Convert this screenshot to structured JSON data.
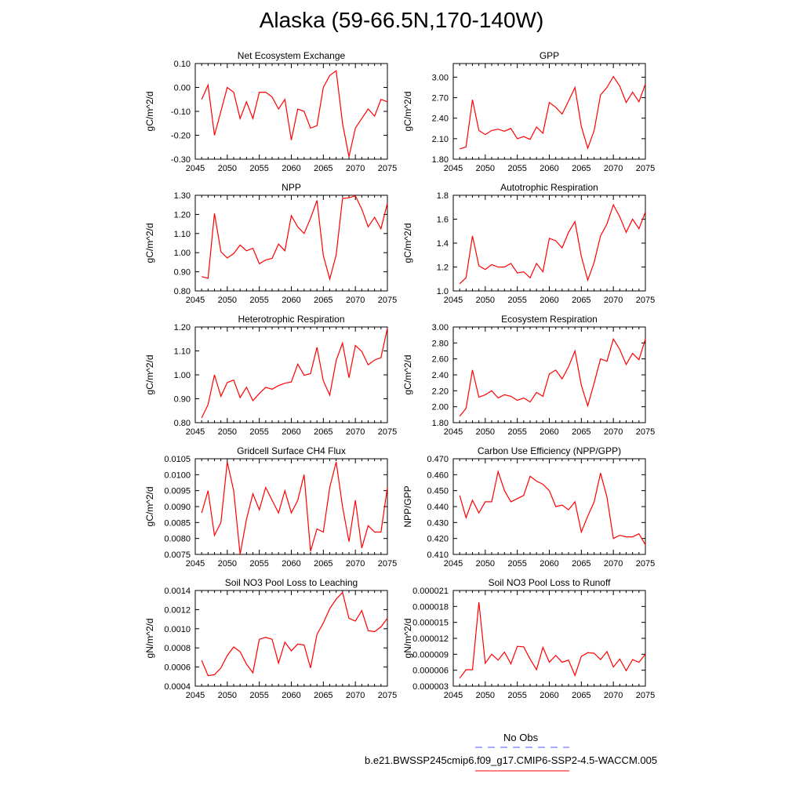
{
  "figure": {
    "title": "Alaska (59-66.5N,170-140W)"
  },
  "colors": {
    "model_line": "#ff0000",
    "obs_line": "#5a5aff",
    "axis": "#000000"
  },
  "legend": {
    "obs_label": "No Obs",
    "model_label": "b.e21.BWSSP245cmip6.f09_g17.CMIP6-SSP2-4.5-WACCM.005"
  },
  "chart_data": [
    {
      "type": "line",
      "title": "Net Ecosystem Exchange",
      "ylabel": "gC/m^2/d",
      "xlim": [
        2045,
        2075
      ],
      "ylim": [
        -0.3,
        0.1
      ],
      "yticks": [
        "-0.30",
        "-0.20",
        "-0.10",
        "0.00",
        "0.10"
      ],
      "xticks": [
        "2045",
        "2050",
        "2055",
        "2060",
        "2065",
        "2070",
        "2075"
      ],
      "x": [
        2046,
        2047,
        2048,
        2049,
        2050,
        2051,
        2052,
        2053,
        2054,
        2055,
        2056,
        2057,
        2058,
        2059,
        2060,
        2061,
        2062,
        2063,
        2064,
        2065,
        2066,
        2067,
        2068,
        2069,
        2070,
        2071,
        2072,
        2073,
        2074,
        2075
      ],
      "values": [
        -0.05,
        0.01,
        -0.2,
        -0.1,
        0.0,
        -0.02,
        -0.13,
        -0.06,
        -0.13,
        -0.02,
        -0.02,
        -0.04,
        -0.09,
        -0.05,
        -0.22,
        -0.09,
        -0.1,
        -0.17,
        -0.16,
        0.0,
        0.05,
        0.07,
        -0.15,
        -0.29,
        -0.17,
        -0.13,
        -0.09,
        -0.12,
        -0.05,
        -0.06
      ]
    },
    {
      "type": "line",
      "title": "GPP",
      "ylabel": "gC/m^2/d",
      "xlim": [
        2045,
        2075
      ],
      "ylim": [
        1.8,
        3.2
      ],
      "yticks": [
        "1.80",
        "2.10",
        "2.40",
        "2.70",
        "3.00"
      ],
      "xticks": [
        "2045",
        "2050",
        "2055",
        "2060",
        "2065",
        "2070",
        "2075"
      ],
      "x": [
        2046,
        2047,
        2048,
        2049,
        2050,
        2051,
        2052,
        2053,
        2054,
        2055,
        2056,
        2057,
        2058,
        2059,
        2060,
        2061,
        2062,
        2063,
        2064,
        2065,
        2066,
        2067,
        2068,
        2069,
        2070,
        2071,
        2072,
        2073,
        2074,
        2075
      ],
      "values": [
        1.95,
        1.98,
        2.67,
        2.22,
        2.16,
        2.22,
        2.24,
        2.21,
        2.25,
        2.1,
        2.13,
        2.09,
        2.27,
        2.18,
        2.63,
        2.56,
        2.46,
        2.65,
        2.85,
        2.28,
        1.96,
        2.22,
        2.74,
        2.85,
        3.01,
        2.87,
        2.63,
        2.78,
        2.64,
        2.9
      ]
    },
    {
      "type": "line",
      "title": "NPP",
      "ylabel": "gC/m^2/d",
      "xlim": [
        2045,
        2075
      ],
      "ylim": [
        0.8,
        1.3
      ],
      "yticks": [
        "0.80",
        "0.90",
        "1.00",
        "1.10",
        "1.20",
        "1.30"
      ],
      "xticks": [
        "2045",
        "2050",
        "2055",
        "2060",
        "2065",
        "2070",
        "2075"
      ],
      "x": [
        2046,
        2047,
        2048,
        2049,
        2050,
        2051,
        2052,
        2053,
        2054,
        2055,
        2056,
        2057,
        2058,
        2059,
        2060,
        2061,
        2062,
        2063,
        2064,
        2065,
        2066,
        2067,
        2068,
        2069,
        2070,
        2071,
        2072,
        2073,
        2074,
        2075
      ],
      "values": [
        0.875,
        0.866,
        1.205,
        1.005,
        0.972,
        0.995,
        1.04,
        1.01,
        1.023,
        0.942,
        0.962,
        0.97,
        1.045,
        1.01,
        1.193,
        1.135,
        1.1,
        1.18,
        1.273,
        0.985,
        0.862,
        0.988,
        1.283,
        1.287,
        1.297,
        1.228,
        1.135,
        1.185,
        1.125,
        1.258
      ]
    },
    {
      "type": "line",
      "title": "Autotrophic Respiration",
      "ylabel": "gC/m^2/d",
      "xlim": [
        2045,
        2075
      ],
      "ylim": [
        1.0,
        1.8
      ],
      "yticks": [
        "1.0",
        "1.2",
        "1.4",
        "1.6",
        "1.8"
      ],
      "xticks": [
        "2045",
        "2050",
        "2055",
        "2060",
        "2065",
        "2070",
        "2075"
      ],
      "x": [
        2046,
        2047,
        2048,
        2049,
        2050,
        2051,
        2052,
        2053,
        2054,
        2055,
        2056,
        2057,
        2058,
        2059,
        2060,
        2061,
        2062,
        2063,
        2064,
        2065,
        2066,
        2067,
        2068,
        2069,
        2070,
        2071,
        2072,
        2073,
        2074,
        2075
      ],
      "values": [
        1.06,
        1.11,
        1.46,
        1.21,
        1.18,
        1.22,
        1.2,
        1.2,
        1.23,
        1.15,
        1.16,
        1.11,
        1.23,
        1.16,
        1.44,
        1.42,
        1.36,
        1.49,
        1.58,
        1.29,
        1.09,
        1.24,
        1.46,
        1.56,
        1.72,
        1.62,
        1.49,
        1.6,
        1.52,
        1.66
      ]
    },
    {
      "type": "line",
      "title": "Heterotrophic Respiration",
      "ylabel": "gC/m^2/d",
      "xlim": [
        2045,
        2075
      ],
      "ylim": [
        0.8,
        1.2
      ],
      "yticks": [
        "0.80",
        "0.90",
        "1.00",
        "1.10",
        "1.20"
      ],
      "xticks": [
        "2045",
        "2050",
        "2055",
        "2060",
        "2065",
        "2070",
        "2075"
      ],
      "x": [
        2046,
        2047,
        2048,
        2049,
        2050,
        2051,
        2052,
        2053,
        2054,
        2055,
        2056,
        2057,
        2058,
        2059,
        2060,
        2061,
        2062,
        2063,
        2064,
        2065,
        2066,
        2067,
        2068,
        2069,
        2070,
        2071,
        2072,
        2073,
        2074,
        2075
      ],
      "values": [
        0.82,
        0.875,
        1.0,
        0.91,
        0.968,
        0.978,
        0.905,
        0.948,
        0.892,
        0.922,
        0.948,
        0.94,
        0.955,
        0.965,
        0.97,
        1.045,
        0.998,
        1.005,
        1.115,
        0.975,
        0.915,
        1.06,
        1.133,
        0.988,
        1.123,
        1.098,
        1.042,
        1.062,
        1.072,
        1.195
      ]
    },
    {
      "type": "line",
      "title": "Ecosystem Respiration",
      "ylabel": "gC/m^2/d",
      "xlim": [
        2045,
        2075
      ],
      "ylim": [
        1.8,
        3.0
      ],
      "yticks": [
        "1.80",
        "2.00",
        "2.20",
        "2.40",
        "2.60",
        "2.80",
        "3.00"
      ],
      "xticks": [
        "2045",
        "2050",
        "2055",
        "2060",
        "2065",
        "2070",
        "2075"
      ],
      "x": [
        2046,
        2047,
        2048,
        2049,
        2050,
        2051,
        2052,
        2053,
        2054,
        2055,
        2056,
        2057,
        2058,
        2059,
        2060,
        2061,
        2062,
        2063,
        2064,
        2065,
        2066,
        2067,
        2068,
        2069,
        2070,
        2071,
        2072,
        2073,
        2074,
        2075
      ],
      "values": [
        1.88,
        1.98,
        2.46,
        2.12,
        2.15,
        2.2,
        2.11,
        2.15,
        2.13,
        2.08,
        2.11,
        2.06,
        2.18,
        2.13,
        2.41,
        2.46,
        2.35,
        2.5,
        2.7,
        2.27,
        2.01,
        2.3,
        2.6,
        2.57,
        2.85,
        2.72,
        2.53,
        2.67,
        2.59,
        2.85
      ]
    },
    {
      "type": "line",
      "title": "Gridcell Surface CH4 Flux",
      "ylabel": "gC/m^2/d",
      "xlim": [
        2045,
        2075
      ],
      "ylim": [
        0.0075,
        0.0105
      ],
      "yticks": [
        "0.0075",
        "0.0080",
        "0.0085",
        "0.0090",
        "0.0095",
        "0.0100",
        "0.0105"
      ],
      "xticks": [
        "2045",
        "2050",
        "2055",
        "2060",
        "2065",
        "2070",
        "2075"
      ],
      "x": [
        2046,
        2047,
        2048,
        2049,
        2050,
        2051,
        2052,
        2053,
        2054,
        2055,
        2056,
        2057,
        2058,
        2059,
        2060,
        2061,
        2062,
        2063,
        2064,
        2065,
        2066,
        2067,
        2068,
        2069,
        2070,
        2071,
        2072,
        2073,
        2074,
        2075
      ],
      "values": [
        0.0088,
        0.0095,
        0.0081,
        0.0085,
        0.0104,
        0.0095,
        0.0075,
        0.0086,
        0.0094,
        0.0089,
        0.0096,
        0.0092,
        0.0088,
        0.0095,
        0.0088,
        0.0092,
        0.01,
        0.0076,
        0.0083,
        0.0082,
        0.0096,
        0.0104,
        0.009,
        0.0079,
        0.0092,
        0.0077,
        0.0084,
        0.0082,
        0.0082,
        0.0096
      ]
    },
    {
      "type": "line",
      "title": "Carbon Use Efficiency (NPP/GPP)",
      "ylabel": "NPP/GPP",
      "xlim": [
        2045,
        2075
      ],
      "ylim": [
        0.41,
        0.47
      ],
      "yticks": [
        "0.410",
        "0.420",
        "0.430",
        "0.440",
        "0.450",
        "0.460",
        "0.470"
      ],
      "xticks": [
        "2045",
        "2050",
        "2055",
        "2060",
        "2065",
        "2070",
        "2075"
      ],
      "x": [
        2046,
        2047,
        2048,
        2049,
        2050,
        2051,
        2052,
        2053,
        2054,
        2055,
        2056,
        2057,
        2058,
        2059,
        2060,
        2061,
        2062,
        2063,
        2064,
        2065,
        2066,
        2067,
        2068,
        2069,
        2070,
        2071,
        2072,
        2073,
        2074,
        2075
      ],
      "values": [
        0.447,
        0.433,
        0.444,
        0.436,
        0.443,
        0.443,
        0.462,
        0.45,
        0.443,
        0.445,
        0.447,
        0.459,
        0.456,
        0.454,
        0.45,
        0.44,
        0.441,
        0.438,
        0.443,
        0.424,
        0.434,
        0.443,
        0.461,
        0.446,
        0.42,
        0.422,
        0.421,
        0.421,
        0.423,
        0.416
      ]
    },
    {
      "type": "line",
      "title": "Soil NO3 Pool Loss to Leaching",
      "ylabel": "gN/m^2/d",
      "xlim": [
        2045,
        2075
      ],
      "ylim": [
        0.0004,
        0.0014
      ],
      "yticks": [
        "0.0004",
        "0.0006",
        "0.0008",
        "0.0010",
        "0.0012",
        "0.0014"
      ],
      "xticks": [
        "2045",
        "2050",
        "2055",
        "2060",
        "2065",
        "2070",
        "2075"
      ],
      "x": [
        2046,
        2047,
        2048,
        2049,
        2050,
        2051,
        2052,
        2053,
        2054,
        2055,
        2056,
        2057,
        2058,
        2059,
        2060,
        2061,
        2062,
        2063,
        2064,
        2065,
        2066,
        2067,
        2068,
        2069,
        2070,
        2071,
        2072,
        2073,
        2074,
        2075
      ],
      "values": [
        0.00067,
        0.00051,
        0.00052,
        0.00059,
        0.00072,
        0.00081,
        0.00076,
        0.00063,
        0.00054,
        0.00089,
        0.00091,
        0.00089,
        0.00064,
        0.00086,
        0.00077,
        0.00084,
        0.00083,
        0.00059,
        0.00094,
        0.00106,
        0.00121,
        0.00131,
        0.00138,
        0.00111,
        0.00108,
        0.00119,
        0.00098,
        0.00097,
        0.00102,
        0.00111
      ]
    },
    {
      "type": "line",
      "title": "Soil NO3 Pool Loss to Runoff",
      "ylabel": "gN/m^2/d",
      "xlim": [
        2045,
        2075
      ],
      "ylim": [
        3e-06,
        2.1e-05
      ],
      "yticks": [
        "0.000003",
        "0.000006",
        "0.000009",
        "0.000012",
        "0.000015",
        "0.000018",
        "0.000021"
      ],
      "xticks": [
        "2045",
        "2050",
        "2055",
        "2060",
        "2065",
        "2070",
        "2075"
      ],
      "x": [
        2046,
        2047,
        2048,
        2049,
        2050,
        2051,
        2052,
        2053,
        2054,
        2055,
        2056,
        2057,
        2058,
        2059,
        2060,
        2061,
        2062,
        2063,
        2064,
        2065,
        2066,
        2067,
        2068,
        2069,
        2070,
        2071,
        2072,
        2073,
        2074,
        2075
      ],
      "values": [
        4.5e-06,
        6.1e-06,
        6.1e-06,
        1.88e-05,
        7.3e-06,
        9e-06,
        7.9e-06,
        9.4e-06,
        7.2e-06,
        1.05e-05,
        1.04e-05,
        8.1e-06,
        6.1e-06,
        1.03e-05,
        7.5e-06,
        8.8e-06,
        7.5e-06,
        7.9e-06,
        5e-06,
        8.6e-06,
        9.3e-06,
        9.2e-06,
        8e-06,
        9.5e-06,
        6.6e-06,
        8.1e-06,
        5.9e-06,
        8e-06,
        7.5e-06,
        9e-06
      ]
    }
  ]
}
